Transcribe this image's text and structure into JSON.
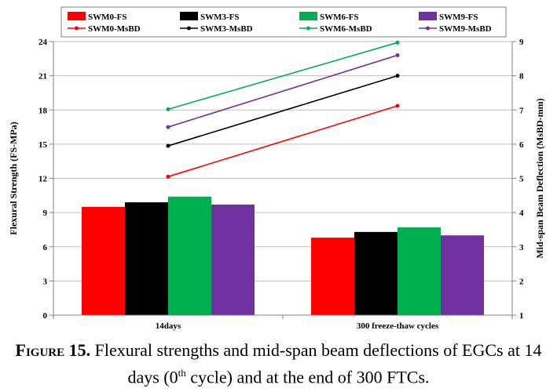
{
  "chart_data": {
    "type": "bar",
    "categories": [
      "14days",
      "300 freeze-thaw cycles"
    ],
    "bar_series": [
      {
        "name": "SWM0-FS",
        "color": "#ff0000",
        "values": [
          9.5,
          6.8
        ]
      },
      {
        "name": "SWM3-FS",
        "color": "#000000",
        "values": [
          9.9,
          7.3
        ]
      },
      {
        "name": "SWM6-FS",
        "color": "#00b050",
        "values": [
          10.4,
          7.7
        ]
      },
      {
        "name": "SWM9-FS",
        "color": "#7030a0",
        "values": [
          9.7,
          7.0
        ]
      }
    ],
    "line_series": [
      {
        "name": "SWM0-MsBD",
        "color": "#ff0000",
        "values": [
          5.05,
          7.12
        ]
      },
      {
        "name": "SWM3-MsBD",
        "color": "#000000",
        "values": [
          5.95,
          8.0
        ]
      },
      {
        "name": "SWM6-MsBD",
        "color": "#00b050",
        "values": [
          7.02,
          8.97
        ]
      },
      {
        "name": "SWM9-MsBD",
        "color": "#7030a0",
        "values": [
          6.5,
          8.6
        ]
      }
    ],
    "ylabel": "Flexural Strength (FS-MPa)",
    "y2label": "Mid-span Beam Deflection (MsBD-mm)",
    "ylim": [
      0,
      24
    ],
    "yticks": [
      0,
      3,
      6,
      9,
      12,
      15,
      18,
      21,
      24
    ],
    "y2lim": [
      1,
      9
    ],
    "y2ticks": [
      1,
      2,
      3,
      4,
      5,
      6,
      7,
      8,
      9
    ],
    "grid": "horizontal",
    "legend": "top"
  },
  "caption": {
    "label": "Figure 15.",
    "text_before_sup": " Flexural strengths and mid-span beam deflections of EGCs at 14 days (0",
    "sup": "th",
    "text_after_sup": " cycle) and at the end of 300 FTCs."
  }
}
